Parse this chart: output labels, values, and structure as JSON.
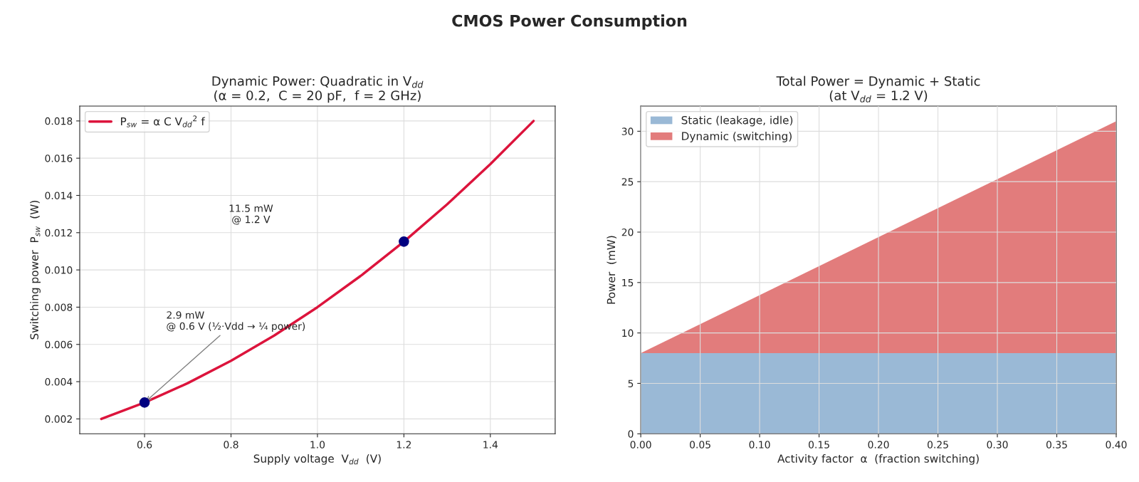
{
  "chart_data": [
    {
      "type": "line",
      "title": "Dynamic Power: Quadratic in V$_{dd}$\n(α = 0.2,  C = 20 pF,  f = 2 GHz)",
      "xlabel": "Supply voltage  V$_{dd}$  (V)",
      "ylabel": "Switching power  P$_{sw}$  (W)",
      "x": [
        0.5,
        0.6,
        0.7,
        0.8,
        0.9,
        1.0,
        1.1,
        1.2,
        1.3,
        1.4,
        1.5
      ],
      "series": [
        {
          "name": "P$_{sw}$ = α C V$_{dd}$$^{2}$ f",
          "color": "#dc143c",
          "values": [
            0.002,
            0.00288,
            0.00392,
            0.00512,
            0.00648,
            0.008,
            0.00968,
            0.01152,
            0.01352,
            0.01568,
            0.018
          ]
        },
        {
          "type": "scatter",
          "color": "#000080",
          "marker": "circle",
          "x": [
            0.6,
            1.2
          ],
          "values": [
            0.00288,
            0.01152
          ]
        }
      ],
      "xlim": [
        0.45,
        1.55
      ],
      "xticks": [
        {
          "value": 0.6,
          "label": "0.6"
        },
        {
          "value": 0.8,
          "label": "0.8"
        },
        {
          "value": 1.0,
          "label": "1.0"
        },
        {
          "value": 1.2,
          "label": "1.2"
        },
        {
          "value": 1.4,
          "label": "1.4"
        }
      ],
      "ylim": [
        0.0012,
        0.0188
      ],
      "yticks": [
        {
          "value": 0.002,
          "label": "0.002"
        },
        {
          "value": 0.004,
          "label": "0.004"
        },
        {
          "value": 0.006,
          "label": "0.006"
        },
        {
          "value": 0.008,
          "label": "0.008"
        },
        {
          "value": 0.01,
          "label": "0.010"
        },
        {
          "value": 0.012,
          "label": "0.012"
        },
        {
          "value": 0.014,
          "label": "0.014"
        },
        {
          "value": 0.016,
          "label": "0.016"
        },
        {
          "value": 0.018,
          "label": "0.018"
        }
      ],
      "grid": true,
      "legend": "top left",
      "annotations": [
        "CMOS Power Consumption",
        "11.5 mW\n@ 1.2 V",
        {
          "text": "2.9 mW\n@ 0.6 V (½·Vdd → ¼ power)",
          "x": 0.6,
          "y": 0.00288
        }
      ]
    },
    {
      "type": "area",
      "stacked": true,
      "title": "Total Power = Dynamic + Static\n(at V$_{dd}$ = 1.2 V)",
      "xlabel": "Activity factor  α  (fraction switching)",
      "ylabel": "Power  (mW)",
      "x": [
        0,
        0.4
      ],
      "series": [
        {
          "name": "Static (leakage, idle)",
          "color": "#9ab9d6",
          "values": [
            8,
            8
          ]
        },
        {
          "name": "Dynamic (switching)",
          "color": "#e27c7c",
          "values": [
            0,
            23
          ]
        }
      ],
      "xlim": [
        0,
        0.4
      ],
      "xticks": [
        {
          "value": 0,
          "label": "0.00"
        },
        {
          "value": 0.05,
          "label": "0.05"
        },
        {
          "value": 0.1,
          "label": "0.10"
        },
        {
          "value": 0.15,
          "label": "0.15"
        },
        {
          "value": 0.2,
          "label": "0.20"
        },
        {
          "value": 0.25,
          "label": "0.25"
        },
        {
          "value": 0.3,
          "label": "0.30"
        },
        {
          "value": 0.35,
          "label": "0.35"
        },
        {
          "value": 0.4,
          "label": "0.40"
        }
      ],
      "ylim": [
        0,
        32.5
      ],
      "yticks": [
        0,
        5,
        10,
        15,
        20,
        25,
        30
      ],
      "grid": true,
      "legend": "top left"
    }
  ]
}
